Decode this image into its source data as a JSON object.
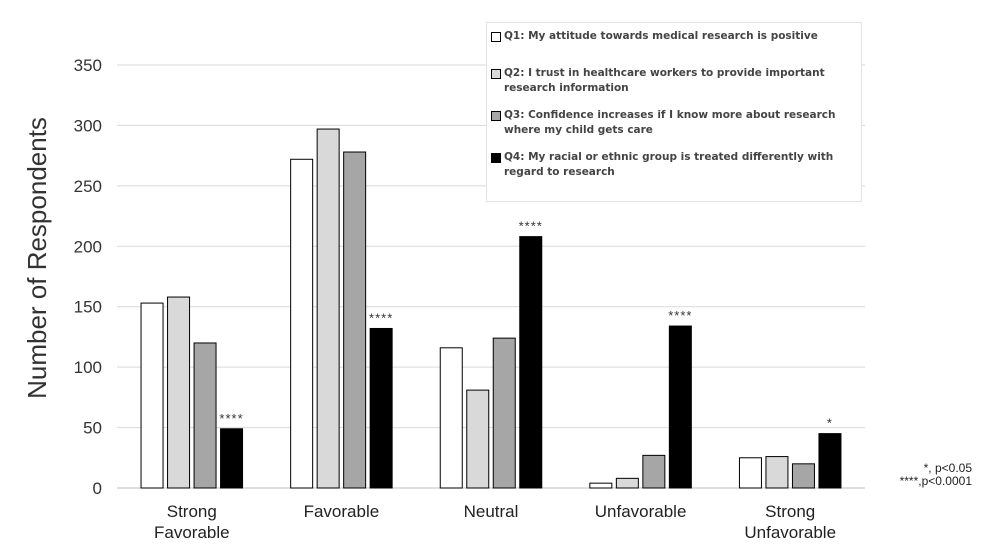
{
  "chart_data": {
    "type": "bar",
    "ylabel": "Number of Respondents",
    "xlabel": "",
    "ylim": [
      0,
      350
    ],
    "yticks": [
      0,
      50,
      100,
      150,
      200,
      250,
      300,
      350
    ],
    "grid": true,
    "legend_position": "top-right",
    "categories": [
      "Strong Favorable",
      "Favorable",
      "Neutral",
      "Unfavorable",
      "Strong Unfavorable"
    ],
    "category_lines": [
      [
        "Strong",
        "Favorable"
      ],
      [
        "Favorable"
      ],
      [
        "Neutral"
      ],
      [
        "Unfavorable"
      ],
      [
        "Strong",
        "Unfavorable"
      ]
    ],
    "series": [
      {
        "name": "Q1: My attitude towards medical research is positive",
        "color": "#ffffff",
        "values": [
          153,
          272,
          116,
          4,
          25
        ]
      },
      {
        "name": "Q2: I trust in healthcare workers to provide important research information",
        "color": "#d9d9d9",
        "values": [
          158,
          297,
          81,
          8,
          26
        ]
      },
      {
        "name": "Q3: Confidence increases if I know more about research where my child gets care",
        "color": "#a6a6a6",
        "values": [
          120,
          278,
          124,
          27,
          20
        ]
      },
      {
        "name": "Q4: My racial or ethnic group is treated differently with regard to research",
        "color": "#000000",
        "values": [
          49,
          132,
          208,
          134,
          45
        ],
        "annotations": [
          "****",
          "****",
          "****",
          "****",
          "*"
        ]
      }
    ],
    "footnote": [
      "*, p<0.05",
      "****,p<0.0001"
    ]
  }
}
